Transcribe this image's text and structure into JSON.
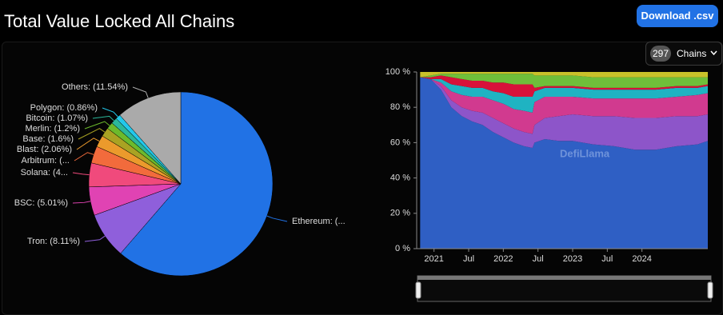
{
  "header": {
    "title": "Total Value Locked All Chains",
    "download": "Download .csv",
    "chain_count": "297",
    "chain_label": "Chains"
  },
  "chart_data": [
    {
      "type": "pie",
      "categories": [
        "Ethereum: (...",
        "Tron: (8.11%)",
        "BSC: (5.01%)",
        "Solana: (4...",
        "Arbitrum: (...",
        "Blast: (2.06%)",
        "Base: (1.6%)",
        "Merlin: (1.2%)",
        "Bitcoin: (1.07%)",
        "Polygon: (0.86%)",
        "Others: (11.54%)"
      ],
      "values": [
        61.35,
        8.11,
        5.01,
        4.2,
        3.0,
        2.06,
        1.6,
        1.2,
        1.07,
        0.86,
        11.54
      ],
      "colors": [
        "#2172e5",
        "#8f5fdb",
        "#e043b3",
        "#f04a7c",
        "#f26b3c",
        "#eb9a2c",
        "#a9a323",
        "#6cba2c",
        "#2bb89b",
        "#23c8ea",
        "#aaaaaa"
      ]
    },
    {
      "type": "area",
      "watermark": "DefiLlama",
      "x": [
        2020.8,
        2020.95,
        2021.1,
        2021.25,
        2021.4,
        2021.55,
        2021.7,
        2021.85,
        2022.0,
        2022.15,
        2022.3,
        2022.42,
        2022.45,
        2022.6,
        2022.8,
        2023.0,
        2023.3,
        2023.6,
        2023.9,
        2024.2,
        2024.5,
        2024.8,
        2024.95
      ],
      "xlim": [
        2020.75,
        2024.95
      ],
      "xticks": [
        {
          "value": 2021,
          "label": "2021"
        },
        {
          "value": 2021.5,
          "label": "Jul"
        },
        {
          "value": 2022,
          "label": "2022"
        },
        {
          "value": 2022.5,
          "label": "Jul"
        },
        {
          "value": 2023,
          "label": "2023"
        },
        {
          "value": 2023.5,
          "label": "Jul"
        },
        {
          "value": 2024,
          "label": "2024"
        }
      ],
      "ylim": [
        0,
        100
      ],
      "yticks": [
        {
          "value": 0,
          "label": "0 %"
        },
        {
          "value": 20,
          "label": "20 %"
        },
        {
          "value": 40,
          "label": "40 %"
        },
        {
          "value": 60,
          "label": "60 %"
        },
        {
          "value": 80,
          "label": "80 %"
        },
        {
          "value": 100,
          "label": "100 %"
        }
      ],
      "series": [
        {
          "color": "#2f5fc4",
          "values": [
            97,
            96,
            90,
            80,
            75,
            72,
            70,
            66,
            63,
            60,
            58,
            57,
            60,
            62,
            61,
            61,
            59,
            58,
            56,
            56,
            58,
            59,
            61
          ]
        },
        {
          "color": "#8d55c9",
          "values": [
            0,
            0,
            2,
            4,
            5,
            6,
            7,
            8,
            8,
            8,
            8,
            8,
            10,
            12,
            14,
            15,
            16,
            17,
            18,
            18,
            17,
            16,
            15
          ]
        },
        {
          "color": "#d13a8f",
          "values": [
            0,
            0,
            2,
            5,
            7,
            8,
            9,
            10,
            11,
            11,
            12,
            12,
            13,
            12,
            11,
            10,
            10,
            10,
            11,
            11,
            11,
            12,
            12
          ]
        },
        {
          "color": "#1fb3c2",
          "values": [
            0,
            0,
            2,
            4,
            5,
            5,
            5,
            5,
            6,
            7,
            8,
            9,
            6,
            5,
            5,
            5,
            5,
            5,
            5,
            5,
            5,
            4,
            4
          ]
        },
        {
          "color": "#d8123a",
          "values": [
            0,
            1,
            2,
            4,
            4,
            4,
            4,
            5,
            6,
            7,
            7,
            7,
            2,
            1,
            1,
            1,
            1,
            1,
            1,
            1,
            1,
            1,
            1
          ]
        },
        {
          "color": "#6fbf3a",
          "values": [
            0,
            1,
            1,
            2,
            3,
            4,
            4,
            5,
            5,
            6,
            6,
            6,
            7,
            6,
            6,
            6,
            6,
            6,
            6,
            6,
            5,
            5,
            4
          ]
        },
        {
          "color": "#c9c12a",
          "values": [
            3,
            2,
            1,
            1,
            1,
            1,
            1,
            1,
            1,
            1,
            1,
            1,
            2,
            2,
            2,
            2,
            3,
            3,
            3,
            3,
            3,
            3,
            3
          ]
        }
      ]
    }
  ]
}
